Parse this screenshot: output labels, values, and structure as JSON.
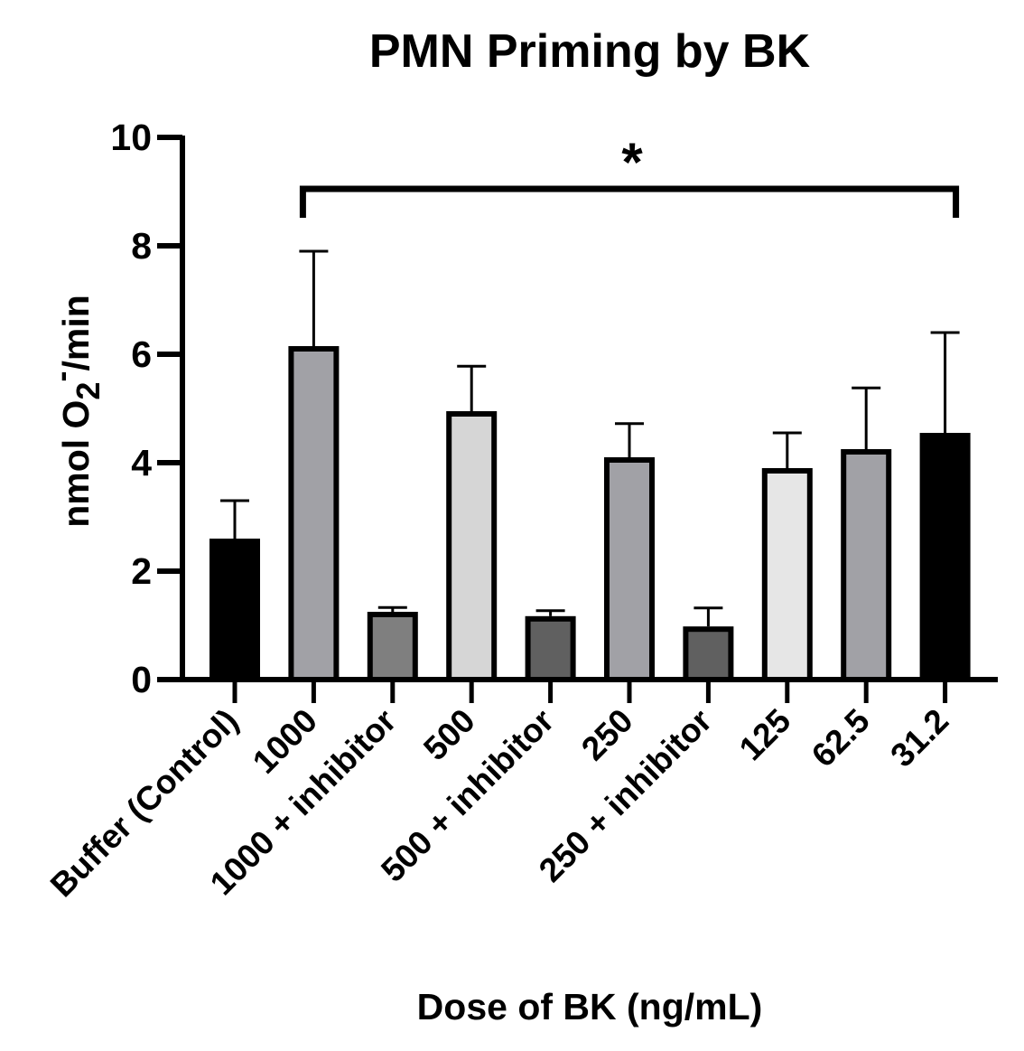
{
  "chart_data": {
    "type": "bar",
    "title": "PMN Priming by BK",
    "xlabel": "Dose of BK (ng/mL)",
    "ylabel": {
      "prefix": "nmol O",
      "subscript": "2",
      "superscript": "-",
      "suffix": "/min"
    },
    "ylim": [
      0,
      10
    ],
    "yticks": [
      0,
      2,
      4,
      6,
      8,
      10
    ],
    "categories": [
      "Buffer (Control)",
      "1000",
      "1000 + inhibitor",
      "500",
      "500 + inhibitor",
      "250",
      "250 + inhibitor",
      "125",
      "62.5",
      "31.2"
    ],
    "values": [
      2.6,
      6.15,
      1.25,
      4.95,
      1.17,
      4.1,
      0.98,
      3.9,
      4.25,
      4.55
    ],
    "error_upper": [
      3.3,
      7.9,
      1.33,
      5.78,
      1.27,
      4.72,
      1.32,
      4.55,
      5.38,
      6.4
    ],
    "bar_colors": [
      "#000000",
      "#a1a1a6",
      "#7f7f7f",
      "#d6d6d6",
      "#606060",
      "#a1a1a6",
      "#606060",
      "#e6e6e6",
      "#a1a1a6",
      "#000000"
    ],
    "significance": {
      "label": "*",
      "from_category": "1000",
      "to_category": "31.2"
    },
    "grid": false,
    "legend": "none"
  }
}
